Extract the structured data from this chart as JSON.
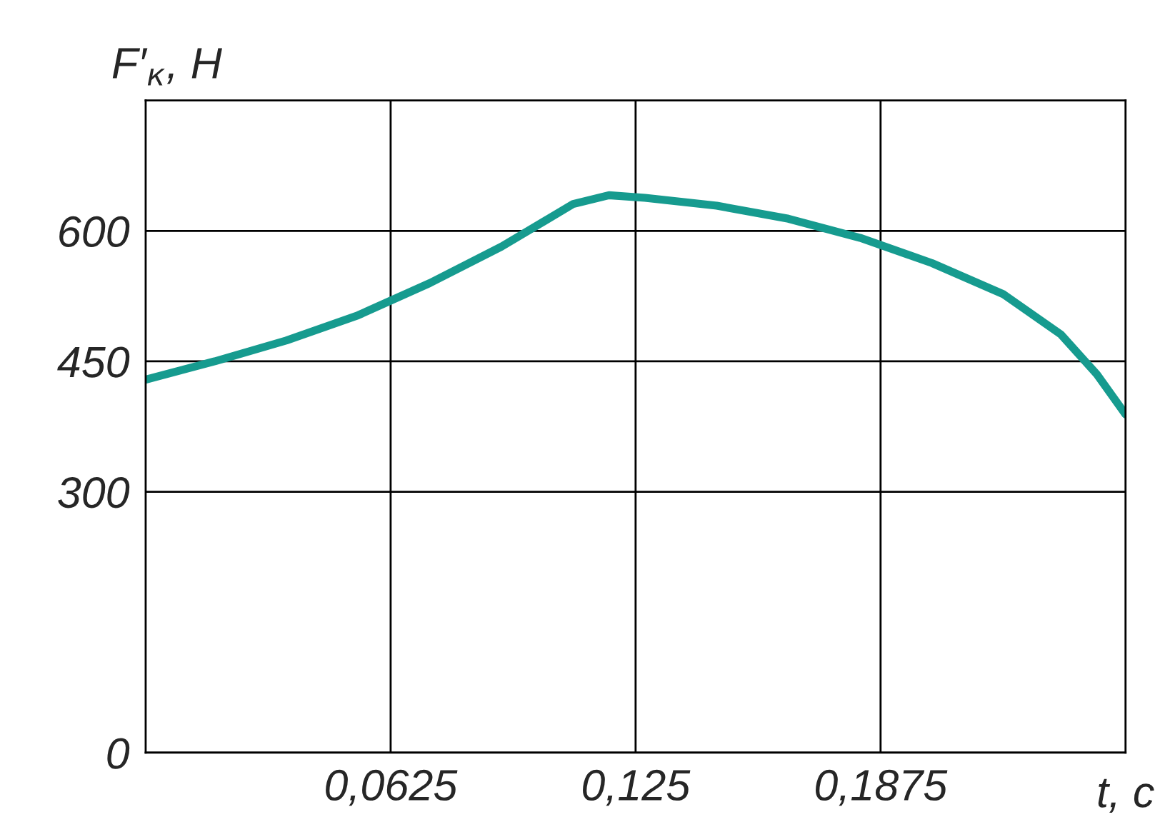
{
  "chart_data": {
    "type": "line",
    "xlabel": "t, c",
    "ylabel": "F′$_{к}$, Н",
    "x": [
      0,
      0.0176,
      0.0359,
      0.0542,
      0.0725,
      0.0908,
      0.1091,
      0.1182,
      0.1274,
      0.1457,
      0.164,
      0.1823,
      0.2006,
      0.2189,
      0.2335,
      0.2427,
      0.25
    ],
    "series": [
      {
        "color": "#169b8f",
        "values": [
          429,
          450,
          474,
          503,
          540,
          582,
          631,
          641,
          638,
          629,
          614,
          592,
          563,
          527,
          481,
          435,
          389
        ]
      }
    ],
    "xlim": [
      0,
      0.25
    ],
    "xticks": [
      {
        "value": 0.0625,
        "label": "0,0625"
      },
      {
        "value": 0.125,
        "label": "0,125"
      },
      {
        "value": 0.1875,
        "label": "0,1875"
      }
    ],
    "ylim": [
      0,
      750
    ],
    "yticks": [
      0,
      300,
      450,
      600
    ],
    "grid": true,
    "marker": "none",
    "line_style": "solid"
  }
}
